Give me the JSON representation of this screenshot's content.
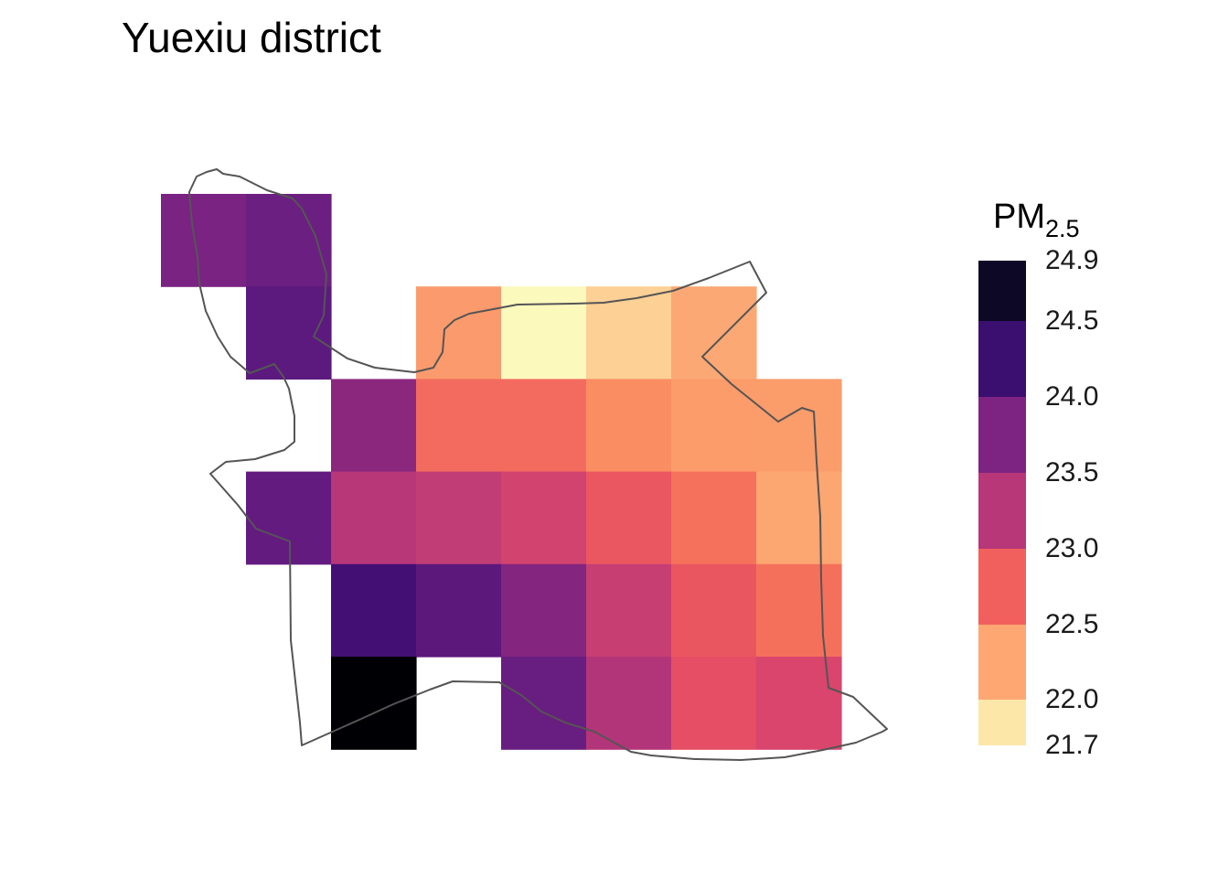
{
  "chart_data": {
    "type": "heatmap",
    "title": "Yuexiu district",
    "legend": {
      "title": "PM",
      "title_subscript": "2.5",
      "placement": "right",
      "range": [
        21.7,
        24.9
      ],
      "ticks": [
        "24.9",
        "24.5",
        "24.0",
        "23.5",
        "23.0",
        "22.5",
        "22.0",
        "21.7"
      ],
      "bins": [
        {
          "from": 24.5,
          "to": 24.9,
          "color": "#0c0826"
        },
        {
          "from": 24.0,
          "to": 24.5,
          "color": "#3b0f70"
        },
        {
          "from": 23.5,
          "to": 24.0,
          "color": "#7d2482"
        },
        {
          "from": 23.0,
          "to": 23.5,
          "color": "#b73779"
        },
        {
          "from": 22.5,
          "to": 23.0,
          "color": "#f1605d"
        },
        {
          "from": 22.0,
          "to": 22.5,
          "color": "#fea772"
        },
        {
          "from": 21.7,
          "to": 22.0,
          "color": "#fde7a8"
        }
      ]
    },
    "grid": {
      "rows": 7,
      "cols": 9
    },
    "cells": [
      {
        "row": 0,
        "col": 0,
        "value": 23.9,
        "color": "#7a2382"
      },
      {
        "row": 0,
        "col": 1,
        "value": 24.0,
        "color": "#6b1f80"
      },
      {
        "row": 1,
        "col": 1,
        "value": 24.2,
        "color": "#5c1a7f"
      },
      {
        "row": 1,
        "col": 3,
        "value": 22.3,
        "color": "#fb9b6d"
      },
      {
        "row": 1,
        "col": 4,
        "value": 21.7,
        "color": "#fcf9bd"
      },
      {
        "row": 1,
        "col": 5,
        "value": 22.0,
        "color": "#fdd095"
      },
      {
        "row": 1,
        "col": 6,
        "value": 22.2,
        "color": "#fca875"
      },
      {
        "row": 2,
        "col": 2,
        "value": 23.7,
        "color": "#8b287e"
      },
      {
        "row": 2,
        "col": 3,
        "value": 22.6,
        "color": "#f36b5e"
      },
      {
        "row": 2,
        "col": 4,
        "value": 22.6,
        "color": "#f36b5e"
      },
      {
        "row": 2,
        "col": 5,
        "value": 22.4,
        "color": "#fa8e62"
      },
      {
        "row": 2,
        "col": 6,
        "value": 22.3,
        "color": "#fc9c6b"
      },
      {
        "row": 2,
        "col": 7,
        "value": 22.3,
        "color": "#fb9c6b"
      },
      {
        "row": 3,
        "col": 1,
        "value": 24.1,
        "color": "#631b80"
      },
      {
        "row": 3,
        "col": 2,
        "value": 23.3,
        "color": "#b73779"
      },
      {
        "row": 3,
        "col": 3,
        "value": 23.2,
        "color": "#c13d76"
      },
      {
        "row": 3,
        "col": 4,
        "value": 23.1,
        "color": "#d2436f"
      },
      {
        "row": 3,
        "col": 5,
        "value": 22.8,
        "color": "#eb5760"
      },
      {
        "row": 3,
        "col": 6,
        "value": 22.6,
        "color": "#f6715b"
      },
      {
        "row": 3,
        "col": 7,
        "value": 22.1,
        "color": "#fca672"
      },
      {
        "row": 4,
        "col": 2,
        "value": 24.4,
        "color": "#440f75"
      },
      {
        "row": 4,
        "col": 3,
        "value": 24.1,
        "color": "#5d187c"
      },
      {
        "row": 4,
        "col": 4,
        "value": 23.8,
        "color": "#84257f"
      },
      {
        "row": 4,
        "col": 5,
        "value": 23.2,
        "color": "#c73e73"
      },
      {
        "row": 4,
        "col": 6,
        "value": 22.8,
        "color": "#ea5660"
      },
      {
        "row": 4,
        "col": 7,
        "value": 22.6,
        "color": "#f5705b"
      },
      {
        "row": 5,
        "col": 2,
        "value": 24.9,
        "color": "#000004"
      },
      {
        "row": 5,
        "col": 4,
        "value": 24.0,
        "color": "#681e80"
      },
      {
        "row": 5,
        "col": 5,
        "value": 23.4,
        "color": "#b33579"
      },
      {
        "row": 5,
        "col": 6,
        "value": 22.9,
        "color": "#e54e64"
      },
      {
        "row": 5,
        "col": 7,
        "value": 23.0,
        "color": "#d9456d"
      }
    ]
  }
}
